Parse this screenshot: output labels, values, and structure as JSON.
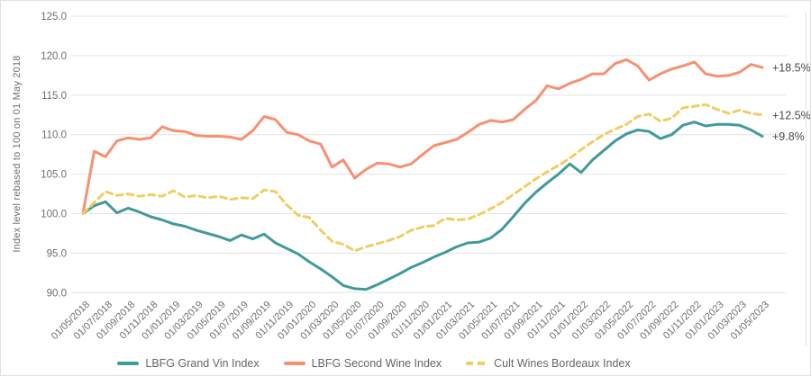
{
  "chart_data": {
    "type": "line",
    "title": "",
    "ylabel": "Index level rebased to 100 on 01 May 2018",
    "ylim": [
      90,
      125
    ],
    "grid": "horizontal",
    "legend_position": "bottom",
    "y_ticks": [
      90,
      95,
      100,
      105,
      110,
      115,
      120,
      125
    ],
    "y_tick_labels": [
      "90.0",
      "95.0",
      "100.0",
      "105.0",
      "110.0",
      "115.0",
      "120.0",
      "125.0"
    ],
    "points_per_tick": 2,
    "x_tick_labels": [
      "01/05/2018",
      "01/07/2018",
      "01/09/2018",
      "01/11/2018",
      "01/01/2019",
      "01/03/2019",
      "01/05/2019",
      "01/07/2019",
      "01/09/2019",
      "01/11/2019",
      "01/01/2020",
      "01/03/2020",
      "01/05/2020",
      "01/07/2020",
      "01/09/2020",
      "01/11/2020",
      "01/01/2021",
      "01/03/2021",
      "01/05/2021",
      "01/07/2021",
      "01/09/2021",
      "01/11/2021",
      "01/01/2022",
      "01/03/2022",
      "01/05/2022",
      "01/07/2022",
      "01/09/2022",
      "01/11/2022",
      "01/01/2023",
      "01/03/2023",
      "01/05/2023"
    ],
    "series": [
      {
        "name": "LBFG Grand Vin Index",
        "color": "#419a9a",
        "style": "solid",
        "values": [
          100.0,
          101.0,
          101.5,
          100.1,
          100.7,
          100.2,
          99.6,
          99.2,
          98.7,
          98.4,
          97.9,
          97.5,
          97.1,
          96.6,
          97.3,
          96.8,
          97.4,
          96.3,
          95.6,
          94.9,
          93.9,
          93.0,
          92.0,
          90.9,
          90.5,
          90.4,
          91.0,
          91.7,
          92.4,
          93.2,
          93.8,
          94.5,
          95.1,
          95.8,
          96.3,
          96.4,
          96.9,
          98.0,
          99.6,
          101.3,
          102.7,
          103.9,
          105.0,
          106.3,
          105.2,
          106.8,
          108.0,
          109.2,
          110.1,
          110.6,
          110.4,
          109.5,
          110.0,
          111.2,
          111.6,
          111.1,
          111.3,
          111.3,
          111.2,
          110.6,
          109.8
        ]
      },
      {
        "name": "LBFG Second Wine Index",
        "color": "#f79071",
        "style": "solid",
        "values": [
          100.0,
          107.9,
          107.2,
          109.2,
          109.6,
          109.4,
          109.6,
          111.0,
          110.5,
          110.4,
          109.9,
          109.8,
          109.8,
          109.7,
          109.4,
          110.5,
          112.3,
          111.9,
          110.3,
          110.0,
          109.2,
          108.8,
          105.9,
          106.8,
          104.5,
          105.6,
          106.4,
          106.3,
          105.9,
          106.3,
          107.5,
          108.6,
          109.0,
          109.4,
          110.3,
          111.3,
          111.8,
          111.6,
          111.9,
          113.2,
          114.3,
          116.2,
          115.8,
          116.5,
          117.0,
          117.7,
          117.7,
          119.0,
          119.5,
          118.7,
          116.9,
          117.7,
          118.3,
          118.7,
          119.2,
          117.7,
          117.4,
          117.5,
          117.9,
          118.9,
          118.5
        ]
      },
      {
        "name": "Cult Wines Bordeaux Index",
        "color": "#efce63",
        "style": "dashed",
        "values": [
          100.0,
          101.4,
          102.8,
          102.3,
          102.5,
          102.2,
          102.4,
          102.2,
          102.9,
          102.1,
          102.3,
          102.0,
          102.2,
          101.8,
          102.0,
          101.9,
          103.0,
          102.8,
          101.1,
          99.8,
          99.5,
          97.9,
          96.5,
          96.1,
          95.3,
          95.8,
          96.2,
          96.6,
          97.1,
          97.9,
          98.3,
          98.5,
          99.4,
          99.2,
          99.3,
          99.9,
          100.6,
          101.4,
          102.4,
          103.4,
          104.4,
          105.3,
          106.1,
          107.0,
          108.1,
          109.1,
          110.0,
          110.7,
          111.3,
          112.3,
          112.6,
          111.7,
          112.1,
          113.4,
          113.6,
          113.8,
          113.2,
          112.7,
          113.1,
          112.7,
          112.5
        ]
      }
    ],
    "annotations": [
      {
        "label": "+18.5%",
        "series": "LBFG Second Wine Index",
        "value": 118.5
      },
      {
        "label": "+12.5%",
        "series": "Cult Wines Bordeaux Index",
        "value": 112.5
      },
      {
        "label": "+9.8%",
        "series": "LBFG Grand Vin Index",
        "value": 109.8
      }
    ],
    "colors": {
      "grid": "#e4e4e4",
      "tick_text": "#6e6e6e",
      "annotation_text": "#4a4a4a",
      "background": "#ffffff"
    }
  }
}
